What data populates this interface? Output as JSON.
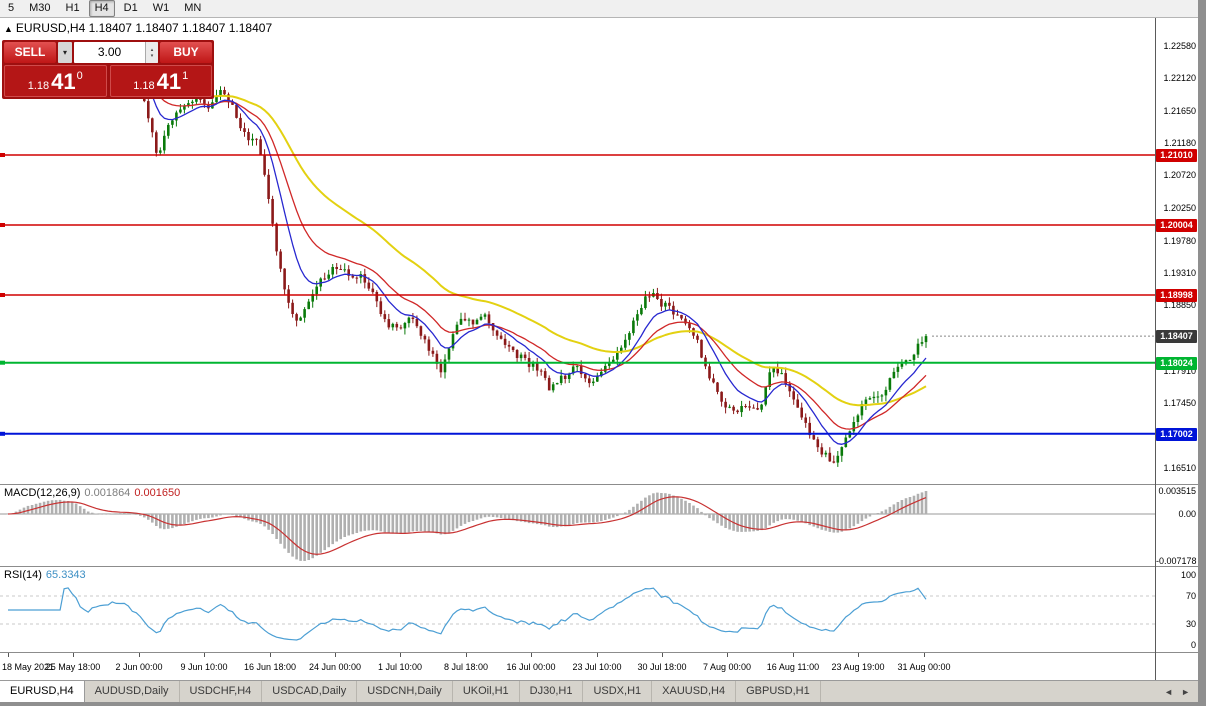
{
  "icons": {
    "collapse": "▲",
    "dropdown": "▾",
    "spin_up": "▴",
    "spin_down": "▾",
    "tab_left": "◄",
    "tab_right": "►"
  },
  "toolbar": {
    "periods": [
      {
        "label": "5",
        "active": false
      },
      {
        "label": "M30",
        "active": false
      },
      {
        "label": "H1",
        "active": false
      },
      {
        "label": "H4",
        "active": true
      },
      {
        "label": "D1",
        "active": false
      },
      {
        "label": "W1",
        "active": false
      },
      {
        "label": "MN",
        "active": false
      }
    ]
  },
  "chart": {
    "symbol": "EURUSD,H4",
    "ohlc": [
      "1.18407",
      "1.18407",
      "1.18407",
      "1.18407"
    ],
    "title": "EURUSD,H4 1.18407 1.18407 1.18407 1.18407"
  },
  "trade_panel": {
    "sell_label": "SELL",
    "buy_label": "BUY",
    "lot_size": "3.00",
    "sell_price": {
      "prefix": "1.18",
      "big": "41",
      "sup": "0"
    },
    "buy_price": {
      "prefix": "1.18",
      "big": "41",
      "sup": "1"
    }
  },
  "price_axis": {
    "max": 1.2298,
    "min": 1.1628,
    "ticks": [
      1.2258,
      1.2212,
      1.2165,
      1.2118,
      1.2072,
      1.2025,
      1.1978,
      1.1931,
      1.1885,
      1.1791,
      1.1745,
      1.1698,
      1.1651
    ],
    "current_price": "1.18407",
    "current_badge_color": "#3a3a3a"
  },
  "hlines": [
    {
      "price": 1.2101,
      "label": "1.21010",
      "color": "#d00000",
      "width": 1.5
    },
    {
      "price": 1.20004,
      "label": "1.20004",
      "color": "#d00000",
      "width": 1.5
    },
    {
      "price": 1.18998,
      "label": "1.18998",
      "color": "#d00000",
      "width": 1.5
    },
    {
      "price": 1.18024,
      "label": "1.18024",
      "color": "#00b531",
      "width": 2
    },
    {
      "price": 1.17002,
      "label": "1.17002",
      "color": "#0014d8",
      "width": 2
    }
  ],
  "macd": {
    "label": "MACD(12,26,9)",
    "value_main": "0.001864",
    "value_signal": "0.001650",
    "axis_top": "0.003515",
    "axis_zero": "0.00",
    "axis_bottom": "-0.007178",
    "axis_top_value": 0.003515,
    "axis_bottom_value": -0.007178
  },
  "rsi": {
    "label": "RSI(14)",
    "value": "65.3343",
    "current": 65.3343,
    "levels": [
      100,
      70,
      30,
      0
    ],
    "dotted_levels": [
      70,
      30
    ]
  },
  "time_axis": {
    "labels": [
      "18 May 2021",
      "25 May 18:00",
      "2 Jun 00:00",
      "9 Jun 10:00",
      "16 Jun 18:00",
      "24 Jun 00:00",
      "1 Jul 10:00",
      "8 Jul 18:00",
      "16 Jul 00:00",
      "23 Jul 10:00",
      "30 Jul 18:00",
      "7 Aug 00:00",
      "16 Aug 11:00",
      "23 Aug 19:00",
      "31 Aug 00:00"
    ]
  },
  "tabs": [
    {
      "label": "EURUSD,H4",
      "active": true
    },
    {
      "label": "AUDUSD,Daily",
      "active": false
    },
    {
      "label": "USDCHF,H4",
      "active": false
    },
    {
      "label": "USDCAD,Daily",
      "active": false
    },
    {
      "label": "USDCNH,Daily",
      "active": false
    },
    {
      "label": "UKOil,H1",
      "active": false
    },
    {
      "label": "DJ30,H1",
      "active": false
    },
    {
      "label": "USDX,H1",
      "active": false
    },
    {
      "label": "XAUUSD,H4",
      "active": false
    },
    {
      "label": "GBPUSD,H1",
      "active": false
    }
  ],
  "chart_data": {
    "type": "candlestick",
    "symbol": "EURUSD",
    "timeframe": "H4",
    "ylim": [
      1.1628,
      1.2298
    ],
    "x_range": [
      "18 May 2021",
      "31 Aug 00:00"
    ],
    "last_close": 1.18407,
    "price_path": [
      [
        0.0,
        1.2195
      ],
      [
        0.012,
        1.2225
      ],
      [
        0.03,
        1.224
      ],
      [
        0.05,
        1.2252
      ],
      [
        0.068,
        1.2245
      ],
      [
        0.085,
        1.22
      ],
      [
        0.1,
        1.2212
      ],
      [
        0.115,
        1.2232
      ],
      [
        0.13,
        1.2222
      ],
      [
        0.145,
        1.219
      ],
      [
        0.155,
        1.215
      ],
      [
        0.163,
        1.2098
      ],
      [
        0.172,
        1.214
      ],
      [
        0.188,
        1.2172
      ],
      [
        0.205,
        1.218
      ],
      [
        0.218,
        1.2172
      ],
      [
        0.23,
        1.2195
      ],
      [
        0.245,
        1.2168
      ],
      [
        0.258,
        1.2128
      ],
      [
        0.272,
        1.2122
      ],
      [
        0.282,
        1.2052
      ],
      [
        0.292,
        1.1968
      ],
      [
        0.303,
        1.19
      ],
      [
        0.313,
        1.1862
      ],
      [
        0.325,
        1.1882
      ],
      [
        0.34,
        1.1922
      ],
      [
        0.355,
        1.1938
      ],
      [
        0.37,
        1.193
      ],
      [
        0.385,
        1.1925
      ],
      [
        0.398,
        1.1902
      ],
      [
        0.41,
        1.1862
      ],
      [
        0.424,
        1.185
      ],
      [
        0.438,
        1.1866
      ],
      [
        0.452,
        1.1842
      ],
      [
        0.466,
        1.1802
      ],
      [
        0.472,
        1.1788
      ],
      [
        0.48,
        1.1825
      ],
      [
        0.492,
        1.1872
      ],
      [
        0.505,
        1.1858
      ],
      [
        0.518,
        1.1876
      ],
      [
        0.532,
        1.1842
      ],
      [
        0.548,
        1.182
      ],
      [
        0.562,
        1.1806
      ],
      [
        0.578,
        1.1792
      ],
      [
        0.59,
        1.1764
      ],
      [
        0.603,
        1.178
      ],
      [
        0.618,
        1.1795
      ],
      [
        0.633,
        1.1774
      ],
      [
        0.648,
        1.179
      ],
      [
        0.663,
        1.1812
      ],
      [
        0.678,
        1.185
      ],
      [
        0.69,
        1.1886
      ],
      [
        0.7,
        1.1902
      ],
      [
        0.71,
        1.189
      ],
      [
        0.722,
        1.188
      ],
      [
        0.735,
        1.1866
      ],
      [
        0.75,
        1.1836
      ],
      [
        0.764,
        1.178
      ],
      [
        0.778,
        1.1746
      ],
      [
        0.792,
        1.173
      ],
      [
        0.806,
        1.1742
      ],
      [
        0.82,
        1.1738
      ],
      [
        0.832,
        1.1794
      ],
      [
        0.845,
        1.1782
      ],
      [
        0.86,
        1.1742
      ],
      [
        0.875,
        1.1698
      ],
      [
        0.888,
        1.167
      ],
      [
        0.9,
        1.166
      ],
      [
        0.912,
        1.1688
      ],
      [
        0.928,
        1.1738
      ],
      [
        0.94,
        1.1756
      ],
      [
        0.951,
        1.1748
      ],
      [
        0.962,
        1.1786
      ],
      [
        0.974,
        1.18
      ],
      [
        0.986,
        1.1816
      ],
      [
        1.0,
        1.1841
      ]
    ],
    "ma_lines": [
      {
        "name": "ma-slow-line",
        "period": 45,
        "color": "#e3d111",
        "width": 2
      },
      {
        "name": "ma-mid-line",
        "period": 20,
        "color": "#d02828",
        "width": 1.3
      },
      {
        "name": "ma-fast-line",
        "period": 10,
        "color": "#2828d0",
        "width": 1.3
      }
    ],
    "indicators": {
      "macd": {
        "fast": 12,
        "slow": 26,
        "signal": 9
      },
      "rsi": {
        "period": 14
      }
    },
    "colors": {
      "up": "#0a7a0a",
      "down": "#8b1a1a",
      "macd_hist": "#b0b0b0",
      "macd_signal": "#c83232",
      "macd_zero": "#9a9a9a",
      "rsi_line": "#4c9fd4",
      "rsi_level": "#c8c8c8"
    }
  }
}
